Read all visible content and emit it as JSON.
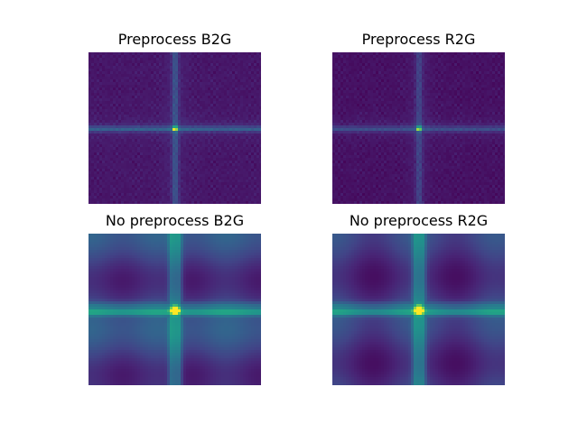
{
  "chart_data": [
    {
      "type": "heatmap",
      "title": "Preprocess B2G",
      "colormap": "viridis",
      "axes": "off",
      "peak": "center",
      "background_level": 0.08,
      "band_level": 0.35,
      "band_width": "narrow",
      "shading": "none"
    },
    {
      "type": "heatmap",
      "title": "Preprocess R2G",
      "colormap": "viridis",
      "axes": "off",
      "peak": "center",
      "background_level": 0.06,
      "band_level": 0.25,
      "band_width": "narrow",
      "shading": "none"
    },
    {
      "type": "heatmap",
      "title": "No preprocess B2G",
      "colormap": "viridis",
      "axes": "off",
      "peak": "center",
      "background_level": 0.25,
      "band_level": 0.55,
      "band_width": "wide",
      "shading": "horizontal_bands"
    },
    {
      "type": "heatmap",
      "title": "No preprocess R2G",
      "colormap": "viridis",
      "axes": "off",
      "peak": "center",
      "background_level": 0.2,
      "band_level": 0.55,
      "band_width": "wide",
      "shading": "blocks"
    }
  ]
}
